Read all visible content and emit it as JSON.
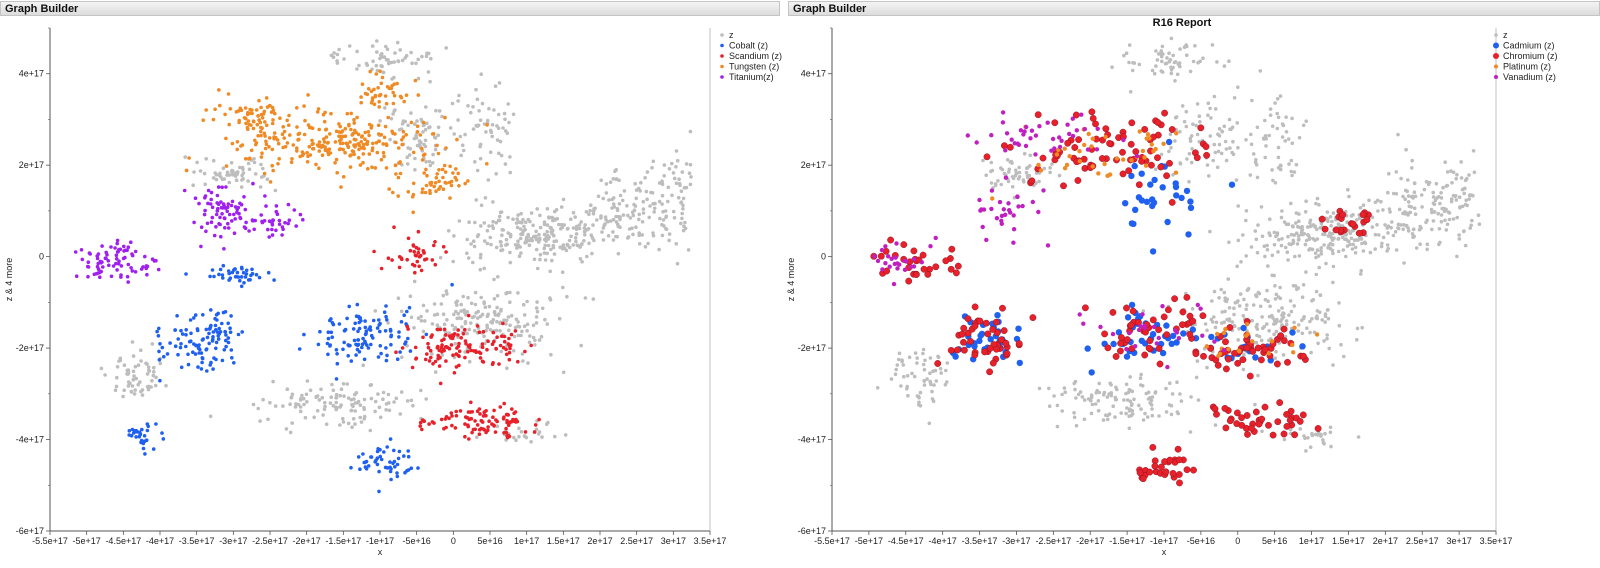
{
  "app": {
    "left_window_title": "Graph Builder",
    "right_window_title": "Graph Builder",
    "right_report_title": "R16 Report"
  },
  "colors": {
    "grey": "#bdbdbd",
    "blue": "#2060f0",
    "red": "#e8202a",
    "orange": "#f08a24",
    "purple": "#a020f0",
    "magenta": "#c020c0"
  },
  "chart_data": [
    {
      "type": "scatter",
      "title": "",
      "xlabel": "x",
      "ylabel": "z & 4 more",
      "xlim": [
        -5.5e+17,
        3.5e+17
      ],
      "ylim": [
        -6e+17,
        5e+17
      ],
      "x_ticks": [
        "-5.5e+17",
        "-5e+17",
        "-4.5e+17",
        "-4e+17",
        "-3.5e+17",
        "-3e+17",
        "-2.5e+17",
        "-2e+17",
        "-1.5e+17",
        "-1e+17",
        "-5e+16",
        "0",
        "5e+16",
        "1e+17",
        "1.5e+17",
        "2e+17",
        "2.5e+17",
        "3e+17",
        "3.5e+17"
      ],
      "y_ticks": [
        "-6e+17",
        "-4e+17",
        "-2e+17",
        "0",
        "2e+17",
        "4e+17"
      ],
      "legend": [
        "z",
        "Cobalt (z)",
        "Scandium (z)",
        "Tungsten (z)",
        "Titanium(z)"
      ],
      "legend_position": "right",
      "series": [
        {
          "name": "z",
          "color": "#bdbdbd",
          "clusters": [
            [
              -3e+17,
              1.8e+17,
              5e+16,
              3e+16,
              60
            ],
            [
              -1e+17,
              4.3e+17,
              7e+16,
              4e+16,
              60
            ],
            [
              -4.5e+16,
              2.6e+17,
              5e+16,
              7e+16,
              70
            ],
            [
              4.5e+16,
              2.7e+17,
              4e+16,
              1e+17,
              60
            ],
            [
              1.2e+17,
              5e+16,
              1.1e+17,
              6e+16,
              240
            ],
            [
              2.4e+17,
              1.1e+17,
              5e+16,
              9e+16,
              90
            ],
            [
              3e+17,
              1.2e+17,
              2.5e+16,
              9e+16,
              60
            ],
            [
              4e+16,
              -1.4e+17,
              1e+17,
              8e+16,
              200
            ],
            [
              -1.5e+17,
              -3.2e+17,
              1e+17,
              5e+16,
              120
            ],
            [
              -4.3e+17,
              -2.6e+17,
              4e+16,
              6e+16,
              60
            ],
            [
              1e+17,
              -3.9e+17,
              5e+16,
              2e+16,
              25
            ]
          ]
        },
        {
          "name": "Cobalt (z)",
          "color": "#2060f0",
          "clusters": [
            [
              -3.4e+17,
              -1.8e+17,
              5e+16,
              6e+16,
              110
            ],
            [
              -1.2e+17,
              -1.7e+17,
              7e+16,
              6e+16,
              110
            ],
            [
              -2.9e+17,
              -4e+16,
              4e+16,
              2e+16,
              40
            ],
            [
              -4.2e+17,
              -3.9e+17,
              2e+16,
              3e+16,
              30
            ],
            [
              -9e+16,
              -4.5e+17,
              4e+16,
              3e+16,
              50
            ]
          ]
        },
        {
          "name": "Scandium (z)",
          "color": "#e8202a",
          "clusters": [
            [
              1.5e+16,
              -2e+17,
              7e+16,
              5e+16,
              120
            ],
            [
              4e+16,
              -3.6e+17,
              6e+16,
              3e+16,
              100
            ],
            [
              -5e+16,
              1e+16,
              4e+16,
              4e+16,
              40
            ]
          ]
        },
        {
          "name": "Tungsten (z)",
          "color": "#f08a24",
          "clusters": [
            [
              -1.6e+17,
              2.5e+17,
              1.3e+17,
              6e+16,
              260
            ],
            [
              -2.7e+17,
              3.1e+17,
              5e+16,
              4e+16,
              60
            ],
            [
              -1e+17,
              3.6e+17,
              4e+16,
              3e+16,
              40
            ],
            [
              -3e+16,
              1.6e+17,
              4e+16,
              4e+16,
              50
            ]
          ]
        },
        {
          "name": "Titanium(z)",
          "color": "#a020f0",
          "clusters": [
            [
              -4.6e+17,
              -1e+16,
              5e+16,
              4e+16,
              80
            ],
            [
              -3.1e+17,
              1e+17,
              4e+16,
              6e+16,
              80
            ],
            [
              -2.4e+17,
              7e+16,
              3e+16,
              3e+16,
              30
            ]
          ]
        }
      ]
    },
    {
      "type": "scatter",
      "title": "R16 Report",
      "xlabel": "x",
      "ylabel": "z & 4 more",
      "xlim": [
        -5.5e+17,
        3.5e+17
      ],
      "ylim": [
        -6e+17,
        5e+17
      ],
      "x_ticks": [
        "-5.5e+17",
        "-5e+17",
        "-4.5e+17",
        "-4e+17",
        "-3.5e+17",
        "-3e+17",
        "-2.5e+17",
        "-2e+17",
        "-1.5e+17",
        "-1e+17",
        "-5e+16",
        "0",
        "5e+16",
        "1e+17",
        "1.5e+17",
        "2e+17",
        "2.5e+17",
        "3e+17",
        "3.5e+17"
      ],
      "y_ticks": [
        "-6e+17",
        "-4e+17",
        "-2e+17",
        "0",
        "2e+17",
        "4e+17"
      ],
      "legend": [
        "z",
        "Cadmium (z)",
        "Chromium (z)",
        "Platinum (z)",
        "Vanadium (z)"
      ],
      "legend_position": "right",
      "series": [
        {
          "name": "z",
          "color": "#bdbdbd",
          "clusters": [
            [
              -3e+17,
              1.8e+17,
              5e+16,
              3e+16,
              60
            ],
            [
              -1e+17,
              4.3e+17,
              7e+16,
              4e+16,
              60
            ],
            [
              -4.5e+16,
              2.6e+17,
              5e+16,
              7e+16,
              70
            ],
            [
              4.5e+16,
              2.7e+17,
              4e+16,
              1e+17,
              60
            ],
            [
              1.2e+17,
              5e+16,
              1.1e+17,
              6e+16,
              240
            ],
            [
              2.4e+17,
              1.1e+17,
              5e+16,
              9e+16,
              90
            ],
            [
              3e+17,
              1.2e+17,
              2.5e+16,
              9e+16,
              60
            ],
            [
              4e+16,
              -1.4e+17,
              1e+17,
              8e+16,
              200
            ],
            [
              -1.5e+17,
              -3.2e+17,
              1e+17,
              5e+16,
              120
            ],
            [
              -4.3e+17,
              -2.6e+17,
              4e+16,
              6e+16,
              60
            ],
            [
              1e+17,
              -3.9e+17,
              5e+16,
              2e+16,
              25
            ]
          ]
        },
        {
          "name": "Cadmium (z)",
          "color": "#2060f0",
          "clusters": [
            [
              -3.4e+17,
              -1.8e+17,
              5e+16,
              6e+16,
              35
            ],
            [
              -1.2e+17,
              -1.7e+17,
              7e+16,
              6e+16,
              35
            ],
            [
              -1.2e+17,
              1.2e+17,
              6e+16,
              1e+17,
              30
            ],
            [
              1.5e+16,
              -2e+17,
              7e+16,
              5e+16,
              20
            ]
          ]
        },
        {
          "name": "Chromium (z)",
          "color": "#e8202a",
          "clusters": [
            [
              -3.4e+17,
              -1.8e+17,
              5e+16,
              6e+16,
              45
            ],
            [
              -1.2e+17,
              -1.7e+17,
              7e+16,
              6e+16,
              45
            ],
            [
              1.5e+16,
              -2e+17,
              7e+16,
              5e+16,
              50
            ],
            [
              4e+16,
              -3.6e+17,
              6e+16,
              3e+16,
              40
            ],
            [
              -1.8e+17,
              2.3e+17,
              1.2e+17,
              7e+16,
              80
            ],
            [
              -4.4e+17,
              -1e+16,
              5e+16,
              4e+16,
              30
            ],
            [
              -1e+17,
              -4.6e+17,
              4e+16,
              3e+16,
              30
            ],
            [
              1.5e+17,
              7e+16,
              4e+16,
              4e+16,
              20
            ]
          ]
        },
        {
          "name": "Platinum (z)",
          "color": "#f08a24",
          "clusters": [
            [
              -1.8e+17,
              2.3e+17,
              1.2e+17,
              7e+16,
              40
            ],
            [
              1.5e+16,
              -2e+17,
              7e+16,
              5e+16,
              20
            ]
          ]
        },
        {
          "name": "Vanadium (z)",
          "color": "#c020c0",
          "clusters": [
            [
              -2.6e+17,
              2.6e+17,
              8e+16,
              5e+16,
              40
            ],
            [
              -3.1e+17,
              1e+17,
              4e+16,
              6e+16,
              30
            ],
            [
              -1.2e+17,
              -1.7e+17,
              7e+16,
              6e+16,
              25
            ],
            [
              -4.6e+17,
              -1e+16,
              5e+16,
              4e+16,
              25
            ]
          ]
        }
      ]
    }
  ]
}
